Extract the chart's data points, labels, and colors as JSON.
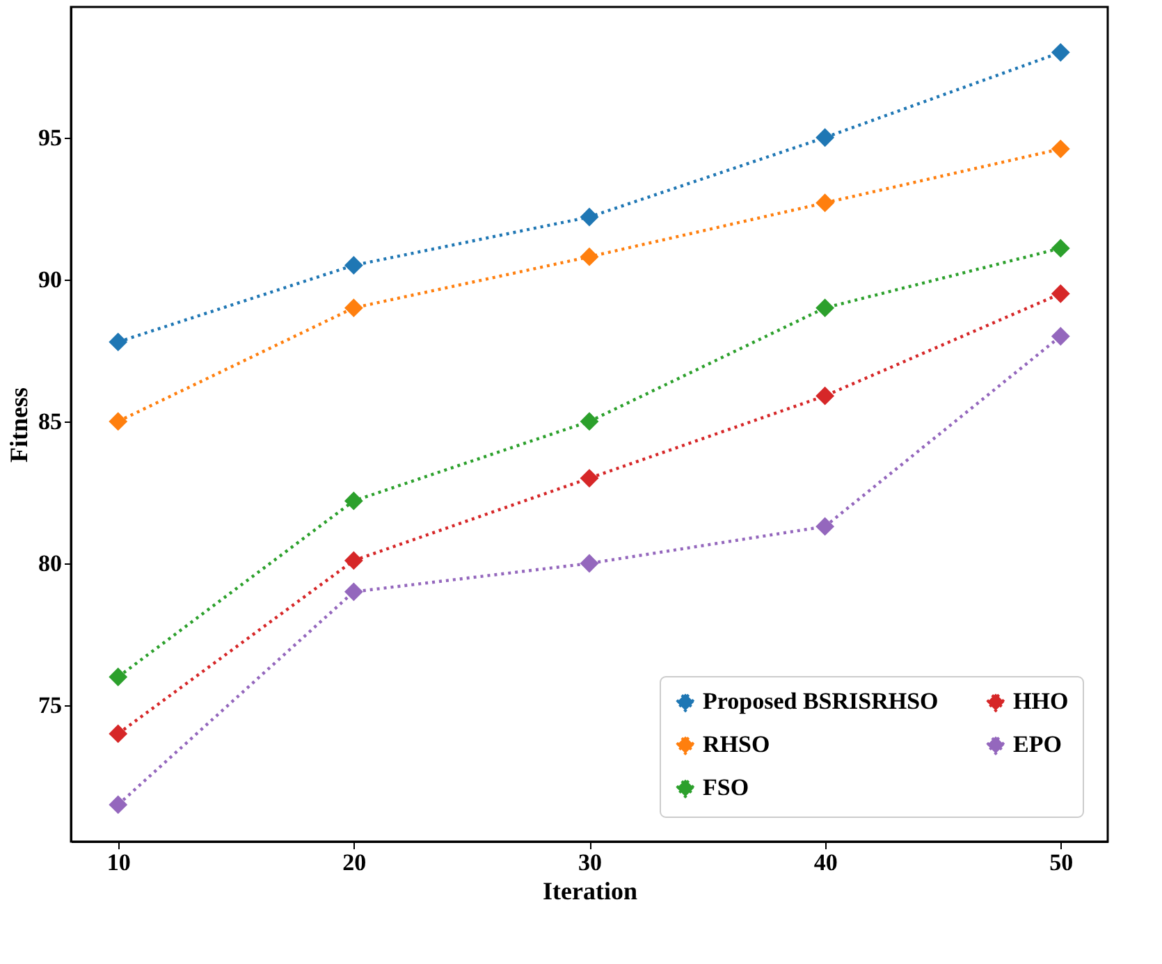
{
  "chart_data": {
    "type": "line",
    "xlabel": "Iteration",
    "ylabel": "Fitness",
    "x": [
      10,
      20,
      30,
      40,
      50
    ],
    "series": [
      {
        "name": "Proposed BSRISRHSO",
        "color": "#1f77b4",
        "values": [
          87.8,
          90.5,
          92.2,
          95.0,
          98.0
        ]
      },
      {
        "name": "RHSO",
        "color": "#ff7f0e",
        "values": [
          85.0,
          89.0,
          90.8,
          92.7,
          94.6
        ]
      },
      {
        "name": "FSO",
        "color": "#2ca02c",
        "values": [
          76.0,
          82.2,
          85.0,
          89.0,
          91.1
        ]
      },
      {
        "name": "HHO",
        "color": "#d62728",
        "values": [
          74.0,
          80.1,
          83.0,
          85.9,
          89.5
        ]
      },
      {
        "name": "EPO",
        "color": "#9467bd",
        "values": [
          71.5,
          79.0,
          80.0,
          81.3,
          88.0
        ]
      }
    ],
    "xlim": [
      8,
      52
    ],
    "ylim": [
      70.2,
      99.6
    ],
    "xticks": [
      10,
      20,
      30,
      40,
      50
    ],
    "yticks": [
      75,
      80,
      85,
      90,
      95
    ],
    "grid": false,
    "legend": "bottom right",
    "marker": "diamond",
    "line_style": "dotted"
  }
}
